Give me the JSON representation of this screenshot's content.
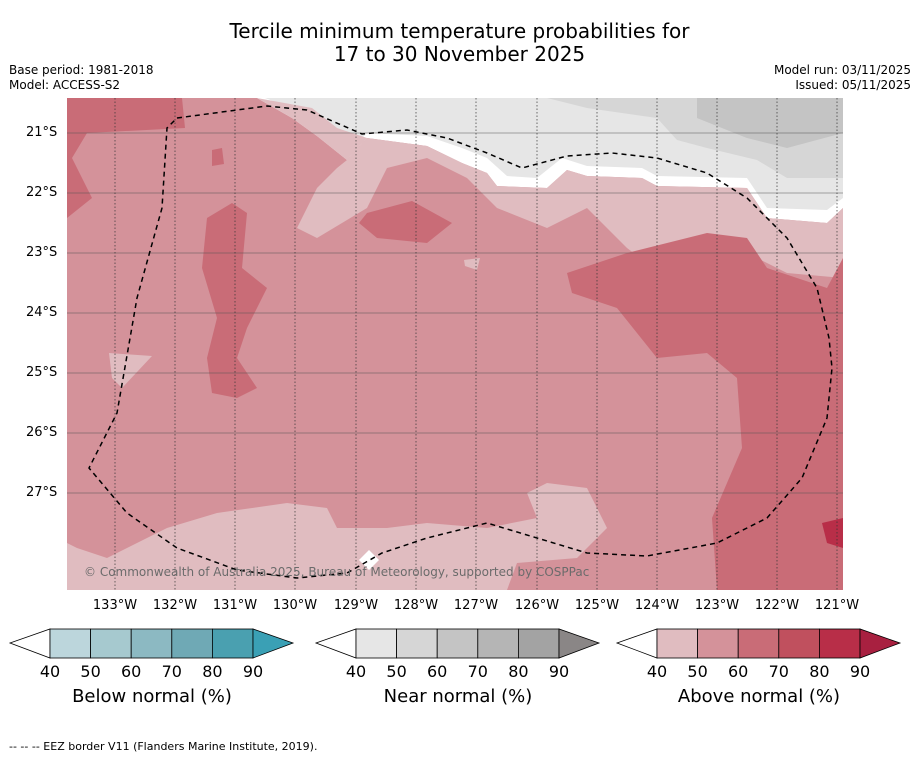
{
  "title": {
    "line1": "Tercile minimum temperature probabilities for",
    "line2": "17 to 30 November 2025"
  },
  "meta": {
    "base_period": "Base period: 1981-2018",
    "model": "Model: ACCESS-S2",
    "model_run": "Model run: 03/11/2025",
    "issued": "Issued: 05/11/2025"
  },
  "map": {
    "lat_labels": [
      "21°S",
      "22°S",
      "23°S",
      "24°S",
      "25°S",
      "26°S",
      "27°S"
    ],
    "lon_labels": [
      "133°W",
      "132°W",
      "131°W",
      "130°W",
      "129°W",
      "128°W",
      "127°W",
      "126°W",
      "125°W",
      "124°W",
      "123°W",
      "122°W",
      "121°W"
    ],
    "copyright": "© Commonwealth of Australia 2025, Bureau of Meteorology, supported by COSPPac",
    "colors": {
      "above_40": "#e0bcc0",
      "above_50": "#d4929a",
      "above_60": "#c96c77",
      "near_40": "#e6e6e6",
      "near_50": "#d6d6d6",
      "near_60": "#c4c4c4"
    }
  },
  "legends": [
    {
      "title": "Below normal (%)",
      "ticks": [
        "40",
        "50",
        "60",
        "70",
        "80",
        "90"
      ],
      "colors": [
        "#ffffff",
        "#bcd6dc",
        "#a6c9cf",
        "#8cb9c2",
        "#6fa9b5",
        "#4aa0b0",
        "#3aa0b5"
      ]
    },
    {
      "title": "Near normal (%)",
      "ticks": [
        "40",
        "50",
        "60",
        "70",
        "80",
        "90"
      ],
      "colors": [
        "#ffffff",
        "#e6e6e6",
        "#d6d6d6",
        "#c4c4c4",
        "#b5b5b5",
        "#a3a3a3",
        "#8a8686"
      ]
    },
    {
      "title": "Above normal (%)",
      "ticks": [
        "40",
        "50",
        "60",
        "70",
        "80",
        "90"
      ],
      "colors": [
        "#ffffff",
        "#e0bcc0",
        "#d4929a",
        "#c96c77",
        "#c0505e",
        "#b82e48",
        "#a82040"
      ]
    }
  ],
  "footer": "-- -- -- EEZ border V11 (Flanders Marine Institute, 2019)."
}
